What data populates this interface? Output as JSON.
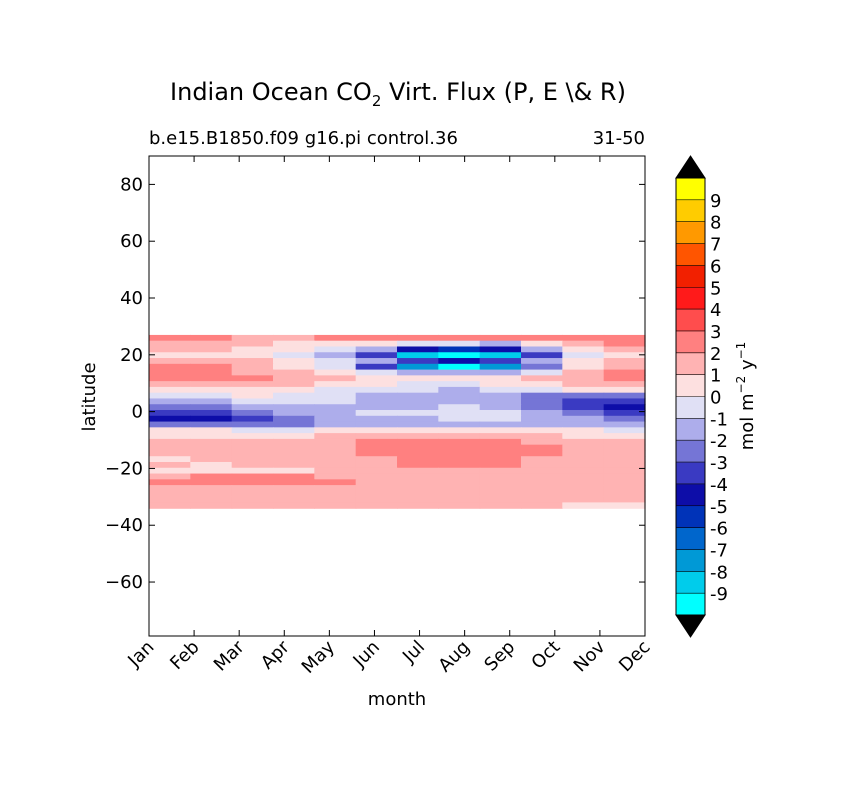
{
  "chart_data": {
    "type": "heatmap",
    "title": {
      "prefix": "Indian Ocean CO",
      "subscript": "2",
      "suffix": " Virt. Flux (P, E \\& R)"
    },
    "subtitle_left": "b.e15.B1850.f09 g16.pi control.36",
    "subtitle_right": "31-50",
    "xlabel": "month",
    "ylabel": "latitude",
    "x_categories": [
      "Jan",
      "Feb",
      "Mar",
      "Apr",
      "May",
      "Jun",
      "Jul",
      "Aug",
      "Sep",
      "Oct",
      "Nov",
      "Dec"
    ],
    "xlim": [
      0,
      11
    ],
    "ylim": [
      -79,
      90
    ],
    "yticks": [
      80,
      60,
      40,
      20,
      0,
      -20,
      -40,
      -60
    ],
    "ytick_labels": [
      "80",
      "60",
      "40",
      "20",
      "0",
      "−20",
      "−40",
      "−60"
    ],
    "data_lat_range": [
      -34,
      27
    ],
    "colorbar": {
      "label_prefix": "mol m",
      "label_exp1": "−2",
      "label_mid": " y",
      "label_exp2": "−1",
      "levels": [
        "-9",
        "-8",
        "-7",
        "-6",
        "-5",
        "-4",
        "-3",
        "-2",
        "-1",
        "0",
        "1",
        "2",
        "3",
        "4",
        "5",
        "6",
        "7",
        "8",
        "9"
      ],
      "colors": [
        "#00ffff",
        "#00cceb",
        "#0099d6",
        "#0066cc",
        "#0033b8",
        "#0d0da8",
        "#3a3ac2",
        "#7575d6",
        "#adadeb",
        "#e0e0f5",
        "#fde0e0",
        "#ffb3b3",
        "#ff8080",
        "#ff4d4d",
        "#ff1a1a",
        "#f22000",
        "#ff5500",
        "#ff9900",
        "#ffcc00",
        "#ffff00"
      ],
      "extend_colors": {
        "under": "#000000",
        "over": "#000000"
      }
    },
    "latitudes": [
      27,
      24,
      21,
      19,
      17,
      15,
      13,
      11,
      9,
      7,
      5,
      3,
      1,
      -1,
      -3,
      -5,
      -7,
      -9,
      -11,
      -13,
      -15,
      -17,
      -19,
      -21,
      -23,
      -25,
      -27,
      -29,
      -31,
      -33
    ],
    "values": [
      [
        3,
        3,
        2,
        2,
        3,
        3,
        3,
        3,
        3,
        3,
        3,
        3
      ],
      [
        2,
        2,
        2,
        1,
        1,
        1,
        0,
        0,
        -1,
        1,
        2,
        3
      ],
      [
        2,
        2,
        1,
        1,
        0,
        -1,
        -4,
        -5,
        -4,
        -1,
        1,
        2
      ],
      [
        1,
        1,
        1,
        0,
        -1,
        -3,
        -8,
        -10,
        -8,
        -3,
        0,
        1
      ],
      [
        2,
        2,
        2,
        1,
        0,
        -1,
        -3,
        -4,
        -3,
        -1,
        1,
        2
      ],
      [
        3,
        3,
        2,
        1,
        0,
        -3,
        -7,
        -10,
        -7,
        -2,
        1,
        2
      ],
      [
        3,
        3,
        2,
        2,
        1,
        0,
        -1,
        -1,
        -1,
        0,
        2,
        3
      ],
      [
        3,
        3,
        3,
        2,
        2,
        1,
        1,
        1,
        1,
        2,
        2,
        3
      ],
      [
        2,
        2,
        2,
        2,
        1,
        1,
        0,
        0,
        1,
        1,
        2,
        2
      ],
      [
        1,
        1,
        1,
        1,
        0,
        0,
        0,
        -1,
        0,
        0,
        1,
        1
      ],
      [
        0,
        0,
        1,
        0,
        0,
        -1,
        -1,
        -1,
        -1,
        -2,
        -2,
        -2
      ],
      [
        -1,
        -1,
        0,
        0,
        0,
        -1,
        -1,
        -1,
        -1,
        -2,
        -3,
        -3
      ],
      [
        -2,
        -2,
        -1,
        -1,
        -1,
        -1,
        -1,
        0,
        -1,
        -2,
        -3,
        -4
      ],
      [
        -3,
        -3,
        -2,
        -1,
        -1,
        0,
        0,
        0,
        0,
        -1,
        -2,
        -3
      ],
      [
        -4,
        -4,
        -3,
        -2,
        -1,
        -1,
        -1,
        0,
        0,
        -1,
        -1,
        -2
      ],
      [
        -2,
        -2,
        -2,
        -2,
        -1,
        -1,
        -1,
        -1,
        -1,
        -1,
        -1,
        -1
      ],
      [
        1,
        1,
        0,
        0,
        1,
        1,
        1,
        1,
        1,
        1,
        1,
        0
      ],
      [
        1,
        1,
        1,
        1,
        2,
        2,
        2,
        2,
        2,
        2,
        1,
        1
      ],
      [
        2,
        2,
        2,
        2,
        2,
        3,
        3,
        3,
        3,
        2,
        2,
        2
      ],
      [
        2,
        2,
        2,
        2,
        2,
        3,
        3,
        3,
        3,
        3,
        2,
        2
      ],
      [
        2,
        2,
        2,
        2,
        2,
        3,
        3,
        3,
        3,
        3,
        2,
        2
      ],
      [
        1,
        2,
        2,
        2,
        2,
        2,
        3,
        3,
        3,
        2,
        2,
        2
      ],
      [
        2,
        1,
        2,
        2,
        2,
        2,
        3,
        3,
        3,
        2,
        2,
        2
      ],
      [
        1,
        1,
        1,
        1,
        2,
        2,
        2,
        2,
        2,
        2,
        2,
        2
      ],
      [
        2,
        3,
        3,
        3,
        2,
        2,
        2,
        2,
        2,
        2,
        2,
        2
      ],
      [
        3,
        3,
        3,
        3,
        3,
        2,
        2,
        2,
        2,
        2,
        2,
        2
      ],
      [
        2,
        2,
        2,
        2,
        2,
        2,
        2,
        2,
        2,
        2,
        2,
        2
      ],
      [
        2,
        2,
        2,
        2,
        2,
        2,
        2,
        2,
        2,
        2,
        2,
        2
      ],
      [
        2,
        2,
        2,
        2,
        2,
        2,
        2,
        2,
        2,
        2,
        2,
        2
      ],
      [
        2,
        2,
        2,
        2,
        2,
        2,
        2,
        2,
        2,
        2,
        1,
        1
      ]
    ],
    "grid": false,
    "legend_position": "right"
  }
}
